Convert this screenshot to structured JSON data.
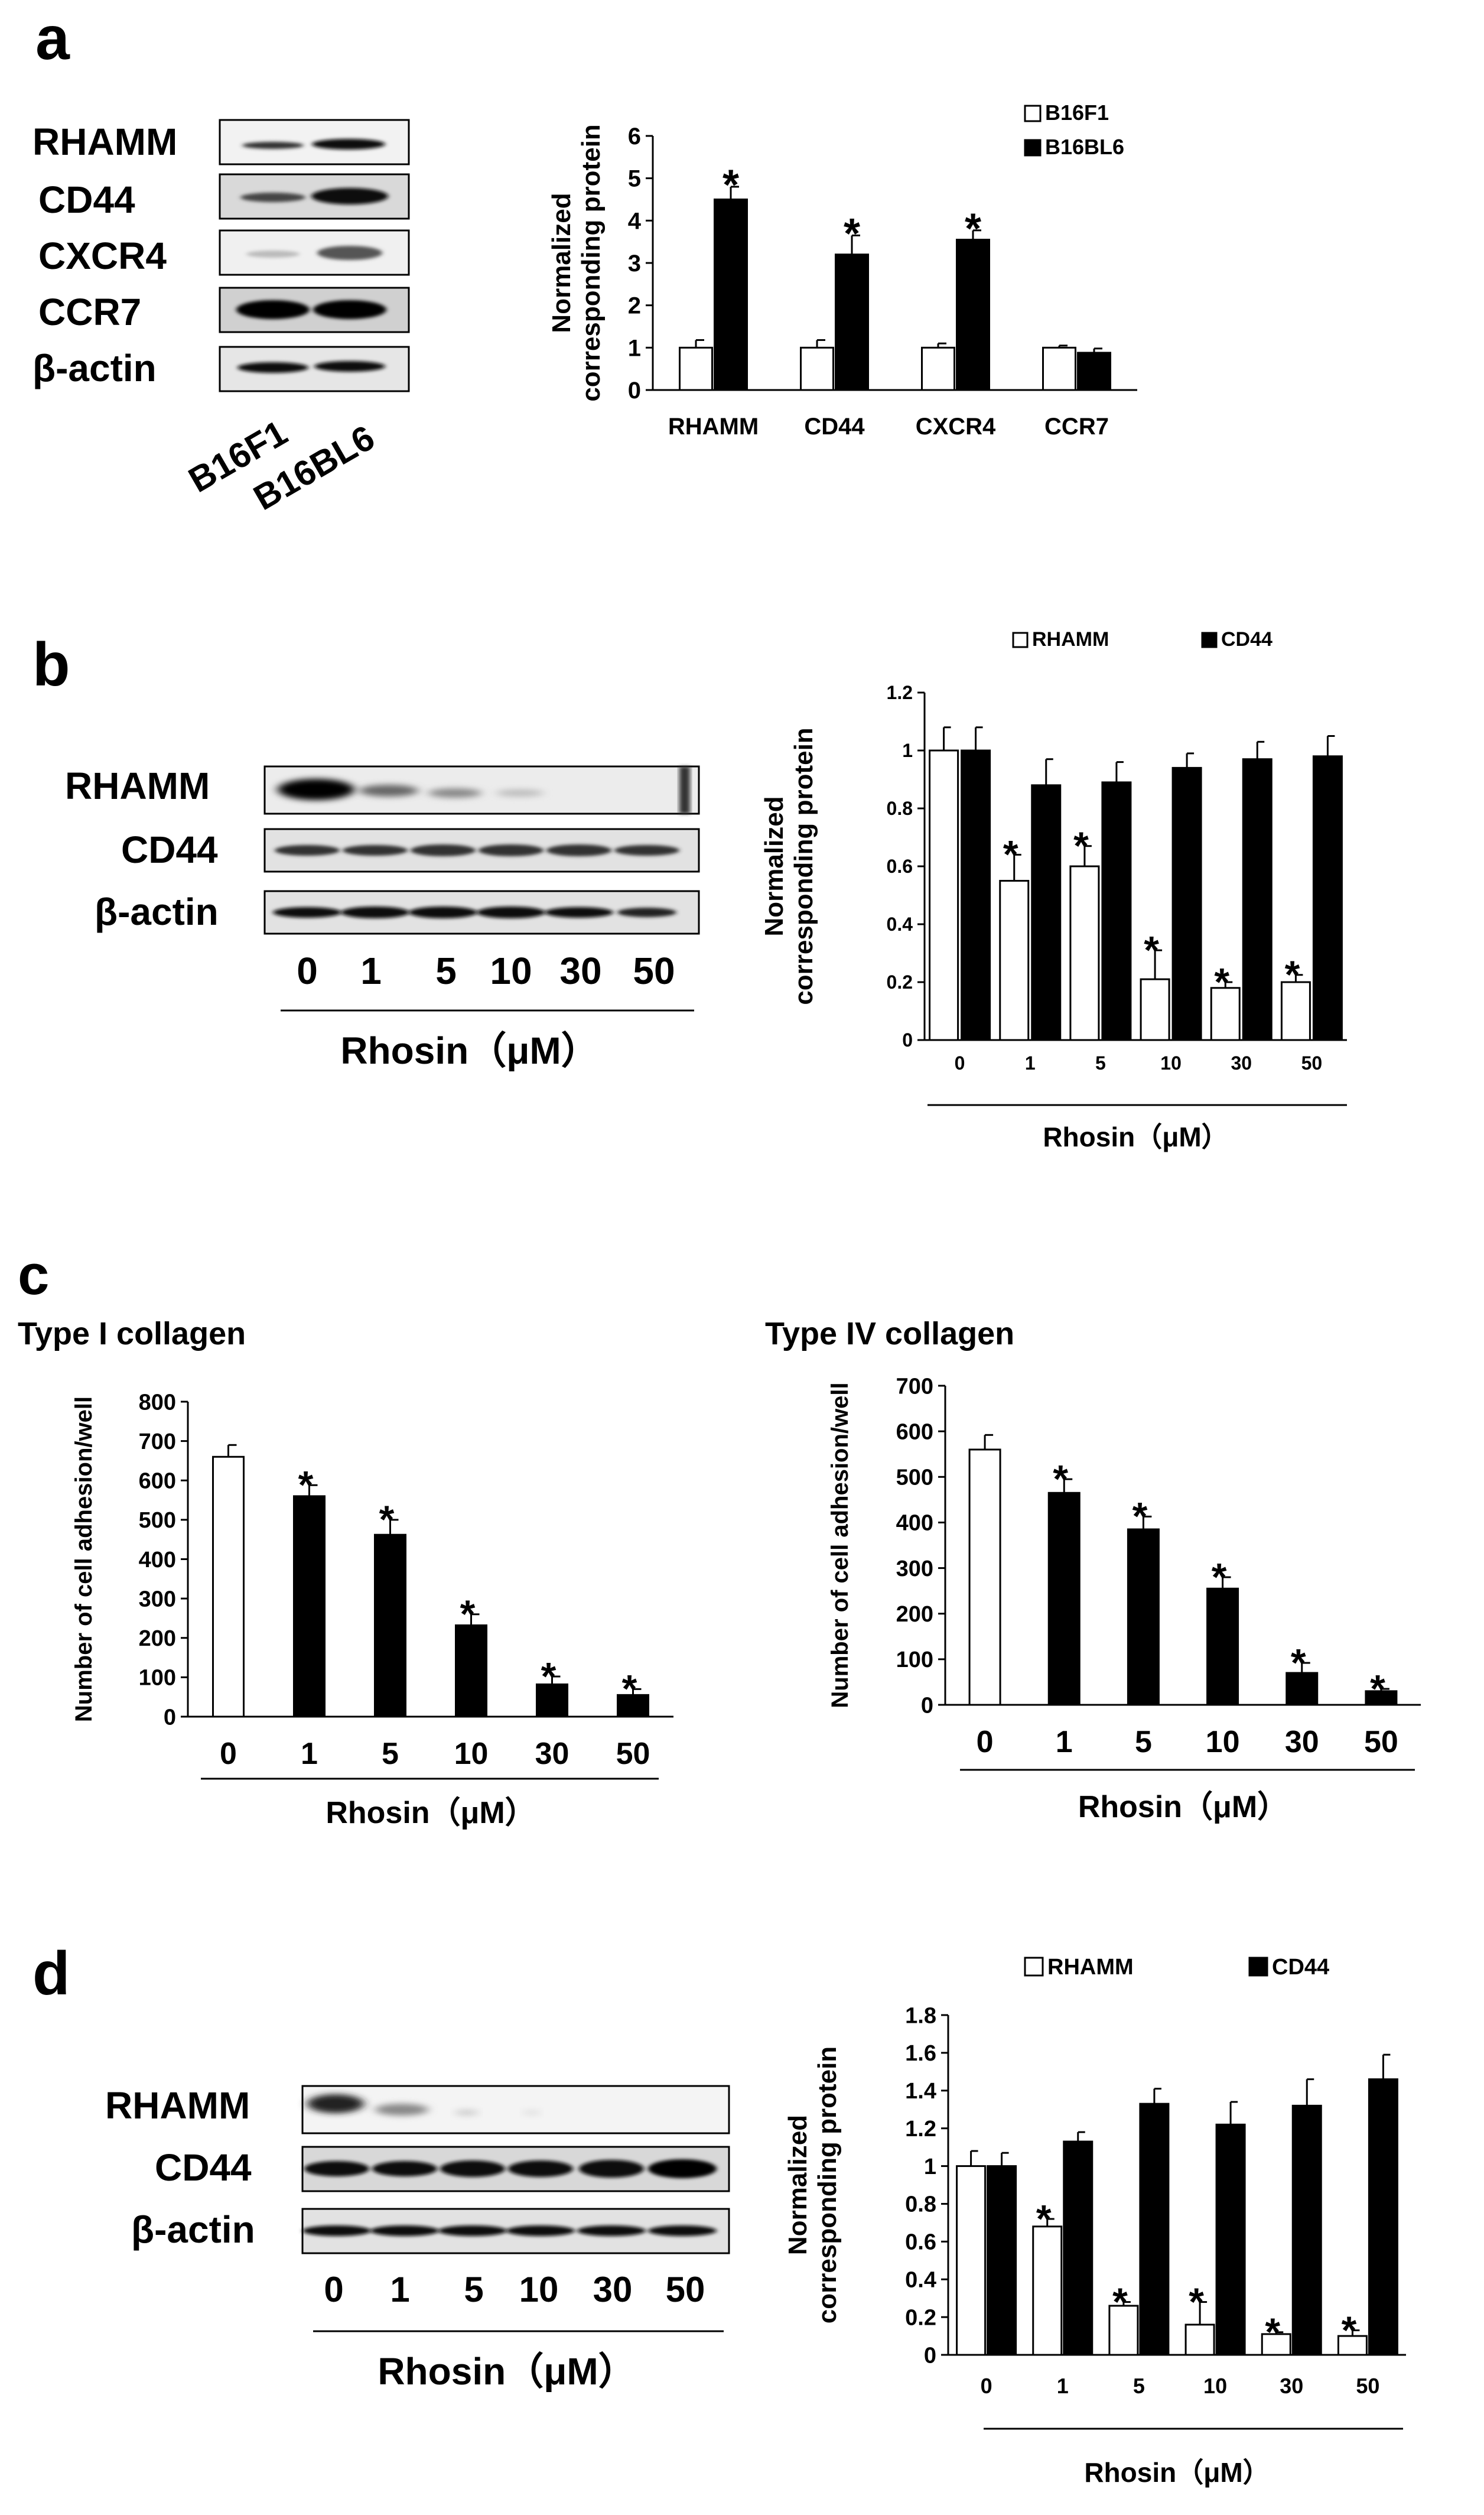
{
  "panel_letters": {
    "a": "a",
    "b": "b",
    "c": "c",
    "d": "d"
  },
  "blots": {
    "a": {
      "rows": [
        "RHAMM",
        "CD44",
        "CXCR4",
        "CCR7",
        "β-actin"
      ],
      "lanes": [
        "B16F1",
        "B16BL6"
      ]
    },
    "b": {
      "rows": [
        "RHAMM",
        "CD44",
        "β-actin"
      ],
      "lanes": [
        "0",
        "1",
        "5",
        "10",
        "30",
        "50"
      ],
      "xlabel": "Rhosin（μM）"
    },
    "d": {
      "rows": [
        "RHAMM",
        "CD44",
        "β-actin"
      ],
      "lanes": [
        "0",
        "1",
        "5",
        "10",
        "30",
        "50"
      ],
      "xlabel": "Rhosin（μM）"
    }
  },
  "chart_data": [
    {
      "id": "a",
      "type": "bar",
      "categories": [
        "RHAMM",
        "CD44",
        "CXCR4",
        "CCR7"
      ],
      "series": [
        {
          "name": "B16F1",
          "values": [
            1.0,
            1.0,
            1.0,
            1.0
          ],
          "errors": [
            0.18,
            0.18,
            0.1,
            0.05
          ],
          "color": "#ffffff"
        },
        {
          "name": "B16BL6",
          "values": [
            4.5,
            3.2,
            3.55,
            0.88
          ],
          "errors": [
            0.3,
            0.45,
            0.22,
            0.1
          ],
          "color": "#000000"
        }
      ],
      "significance": [
        true,
        true,
        true,
        false
      ],
      "ylabel": "Normalized corresponding protein",
      "xlabel": "",
      "ylim": [
        0,
        6
      ],
      "yticks": [
        "0",
        "1",
        "2",
        "3",
        "4",
        "5",
        "6"
      ],
      "legend": "top-right",
      "grid": false
    },
    {
      "id": "b",
      "type": "bar",
      "categories": [
        "0",
        "1",
        "5",
        "10",
        "30",
        "50"
      ],
      "series": [
        {
          "name": "RHAMM",
          "values": [
            1.0,
            0.55,
            0.6,
            0.21,
            0.18,
            0.2
          ],
          "errors": [
            0.08,
            0.09,
            0.07,
            0.1,
            0.02,
            0.025
          ],
          "color": "#ffffff"
        },
        {
          "name": "CD44",
          "values": [
            1.0,
            0.88,
            0.89,
            0.94,
            0.97,
            0.98
          ],
          "errors": [
            0.08,
            0.09,
            0.07,
            0.05,
            0.06,
            0.07
          ],
          "color": "#000000"
        }
      ],
      "significance": [
        false,
        true,
        true,
        true,
        true,
        true
      ],
      "ylabel": "Normalized corresponding protein",
      "xlabel": "Rhosin（μM）",
      "ylim": [
        0,
        1.2
      ],
      "yticks": [
        "0",
        "0.2",
        "0.4",
        "0.6",
        "0.8",
        "1",
        "1.2"
      ],
      "legend": "top",
      "grid": false
    },
    {
      "id": "c1",
      "type": "bar",
      "title": "Type I collagen",
      "categories": [
        "0",
        "1",
        "5",
        "10",
        "30",
        "50"
      ],
      "series": [
        {
          "values": [
            660,
            560,
            462,
            232,
            82,
            55
          ],
          "errors": [
            30,
            28,
            38,
            28,
            20,
            15
          ]
        }
      ],
      "bar_colors": [
        "#ffffff",
        "#000000",
        "#000000",
        "#000000",
        "#000000",
        "#000000"
      ],
      "significance": [
        false,
        true,
        true,
        true,
        true,
        true
      ],
      "ylabel": "Number of cell adhesion/well",
      "xlabel": "Rhosin（μM）",
      "ylim": [
        0,
        800
      ],
      "yticks": [
        "0",
        "100",
        "200",
        "300",
        "400",
        "500",
        "600",
        "700",
        "800"
      ],
      "grid": false
    },
    {
      "id": "c2",
      "type": "bar",
      "title": "Type IV collagen",
      "categories": [
        "0",
        "1",
        "5",
        "10",
        "30",
        "50"
      ],
      "series": [
        {
          "values": [
            560,
            465,
            385,
            255,
            70,
            30
          ],
          "errors": [
            32,
            30,
            28,
            25,
            22,
            5
          ]
        }
      ],
      "bar_colors": [
        "#ffffff",
        "#000000",
        "#000000",
        "#000000",
        "#000000",
        "#000000"
      ],
      "significance": [
        false,
        true,
        true,
        true,
        true,
        true
      ],
      "ylabel": "Number of cell adhesion/well",
      "xlabel": "Rhosin（μM）",
      "ylim": [
        0,
        700
      ],
      "yticks": [
        "0",
        "100",
        "200",
        "300",
        "400",
        "500",
        "600",
        "700"
      ],
      "grid": false
    },
    {
      "id": "d",
      "type": "bar",
      "categories": [
        "0",
        "1",
        "5",
        "10",
        "30",
        "50"
      ],
      "series": [
        {
          "name": "RHAMM",
          "values": [
            1.0,
            0.68,
            0.26,
            0.16,
            0.11,
            0.1
          ],
          "errors": [
            0.08,
            0.04,
            0.02,
            0.12,
            0.01,
            0.03
          ],
          "color": "#ffffff"
        },
        {
          "name": "CD44",
          "values": [
            1.0,
            1.13,
            1.33,
            1.22,
            1.32,
            1.46
          ],
          "errors": [
            0.07,
            0.05,
            0.08,
            0.12,
            0.14,
            0.13
          ],
          "color": "#000000"
        }
      ],
      "significance": [
        false,
        true,
        true,
        true,
        true,
        true
      ],
      "ylabel": "Normalized corresponding protein",
      "xlabel": "Rhosin（μM）",
      "ylim": [
        0,
        1.8
      ],
      "yticks": [
        "0",
        "0.2",
        "0.4",
        "0.6",
        "0.8",
        "1",
        "1.2",
        "1.4",
        "1.6",
        "1.8"
      ],
      "legend": "top",
      "grid": false
    }
  ]
}
